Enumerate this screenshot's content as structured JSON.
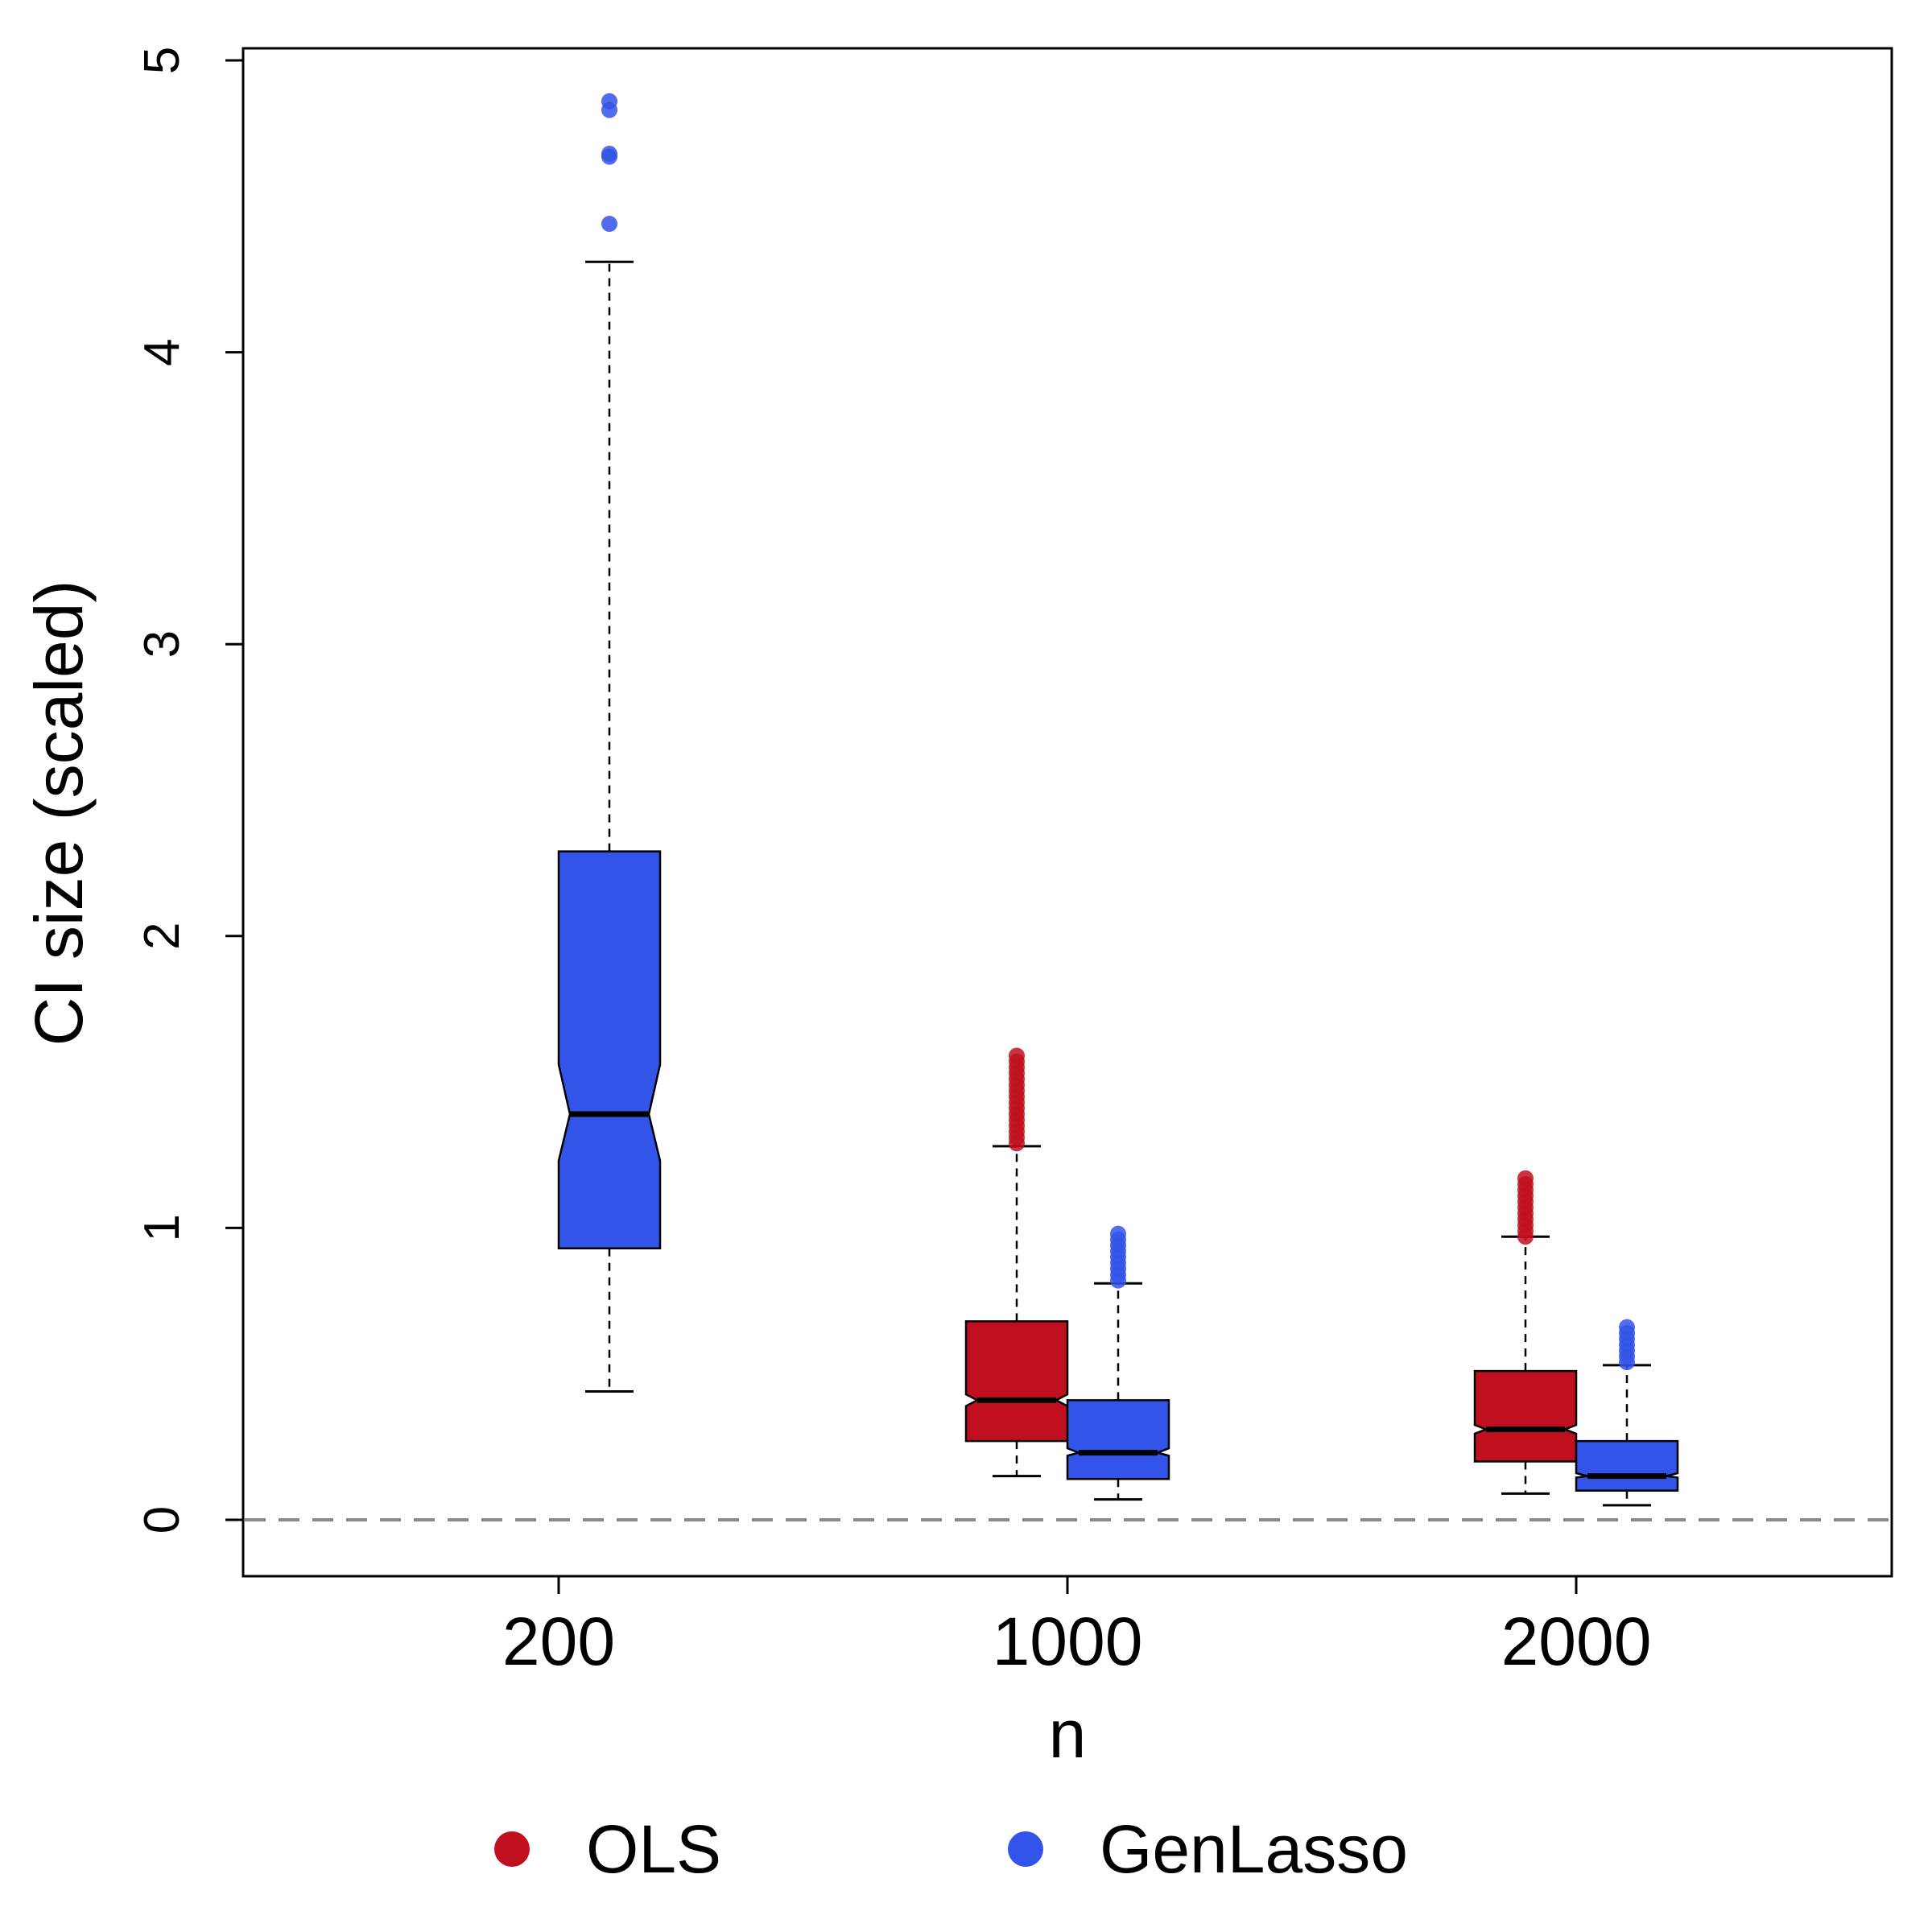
{
  "chart_data": {
    "type": "boxplot",
    "title": "",
    "xlabel": "n",
    "ylabel": "CI size (scaled)",
    "ylim": [
      -0.2,
      5.05
    ],
    "yticks": [
      "0",
      "1",
      "2",
      "3",
      "4",
      "5"
    ],
    "categories": [
      "200",
      "1000",
      "2000"
    ],
    "reference_line": {
      "y": 0,
      "style": "dashed",
      "color": "#888888"
    },
    "notched": true,
    "legend": {
      "placement": "bottom-center"
    },
    "series": [
      {
        "name": "OLS",
        "color": "#C0101F",
        "boxes": [
          null,
          {
            "category": "1000",
            "whisker_low": 0.15,
            "q1": 0.27,
            "median": 0.41,
            "q3": 0.68,
            "whisker_high": 1.28,
            "notch_low": 0.39,
            "notch_high": 0.43,
            "outliers": [
              1.29,
              1.31,
              1.33,
              1.35,
              1.37,
              1.39,
              1.41,
              1.43,
              1.45,
              1.47,
              1.49,
              1.51,
              1.53,
              1.55,
              1.57,
              1.59
            ]
          },
          {
            "category": "2000",
            "whisker_low": 0.09,
            "q1": 0.2,
            "median": 0.31,
            "q3": 0.51,
            "whisker_high": 0.97,
            "notch_low": 0.295,
            "notch_high": 0.325,
            "outliers": [
              0.97,
              0.99,
              1.01,
              1.03,
              1.05,
              1.07,
              1.09,
              1.11,
              1.13,
              1.15,
              1.17
            ]
          }
        ]
      },
      {
        "name": "GenLasso",
        "color": "#3354E8",
        "boxes": [
          {
            "category": "200",
            "whisker_low": 0.44,
            "q1": 0.93,
            "median": 1.39,
            "q3": 2.29,
            "whisker_high": 4.31,
            "notch_low": 1.23,
            "notch_high": 1.56,
            "outliers": [
              4.44,
              4.67,
              4.68,
              4.83,
              4.86
            ]
          },
          {
            "category": "1000",
            "whisker_low": 0.07,
            "q1": 0.14,
            "median": 0.23,
            "q3": 0.41,
            "whisker_high": 0.81,
            "notch_low": 0.22,
            "notch_high": 0.245,
            "outliers": [
              0.82,
              0.84,
              0.86,
              0.88,
              0.9,
              0.92,
              0.94,
              0.96,
              0.98
            ]
          },
          {
            "category": "2000",
            "whisker_low": 0.05,
            "q1": 0.1,
            "median": 0.15,
            "q3": 0.27,
            "whisker_high": 0.53,
            "notch_low": 0.145,
            "notch_high": 0.16,
            "outliers": [
              0.54,
              0.56,
              0.58,
              0.6,
              0.62,
              0.64,
              0.66
            ]
          }
        ]
      }
    ]
  }
}
